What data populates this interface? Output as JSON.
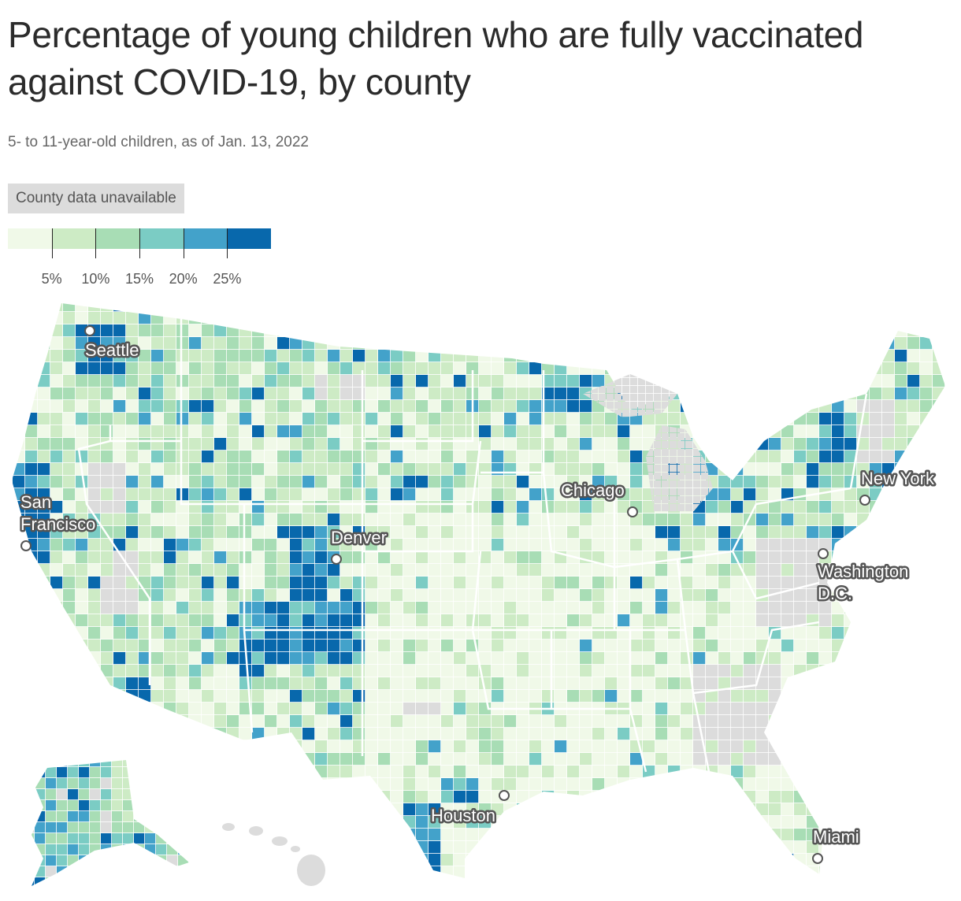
{
  "title": "Percentage of young children who are fully vaccinated against COVID-19, by county",
  "subtitle": "5- to 11-year-old children, as of Jan. 13, 2022",
  "legend": {
    "unavailable_label": "County data unavailable",
    "colors": [
      "#f0f9e8",
      "#cdebc5",
      "#a8ddb5",
      "#7bccc4",
      "#43a2ca",
      "#0868ac"
    ],
    "unavailable_color": "#dcdcdc",
    "thresholds": [
      "5%",
      "10%",
      "15%",
      "20%",
      "25%"
    ]
  },
  "cities": [
    {
      "name": "Seattle"
    },
    {
      "name": "San Francisco"
    },
    {
      "name": "Denver"
    },
    {
      "name": "Chicago"
    },
    {
      "name": "New York"
    },
    {
      "name": "Washington D.C."
    },
    {
      "name": "Houston"
    },
    {
      "name": "Miami"
    }
  ]
}
